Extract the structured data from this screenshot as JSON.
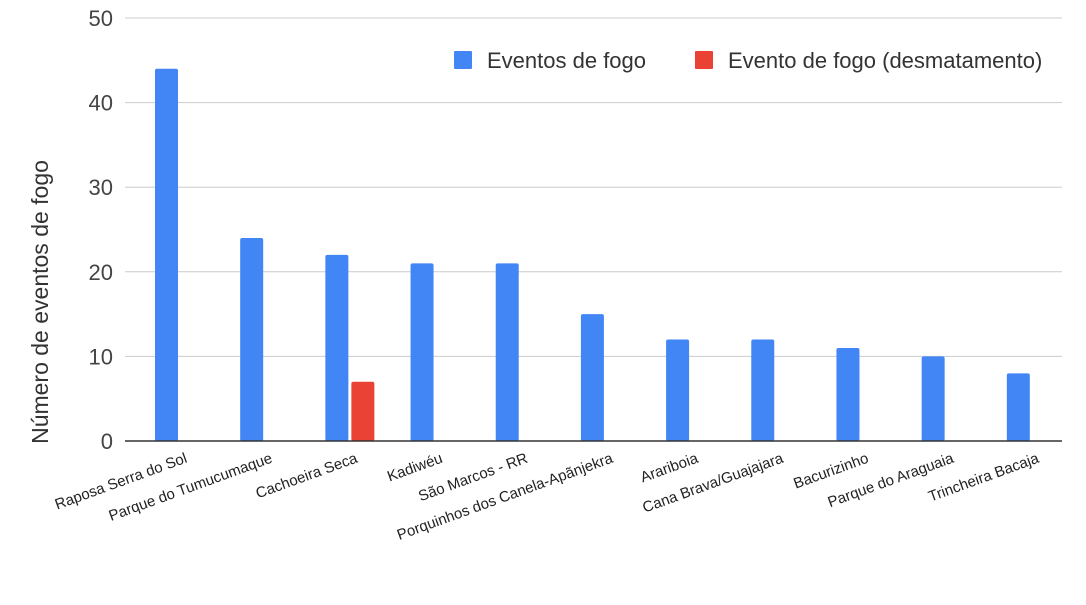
{
  "chart_data": {
    "type": "bar",
    "title": "",
    "xlabel": "",
    "ylabel": "Número de eventos de fogo",
    "ylim": [
      0,
      50
    ],
    "yticks": [
      0,
      10,
      20,
      30,
      40,
      50
    ],
    "grid": true,
    "legend_position": "top-right",
    "categories": [
      "Raposa Serra do Sol",
      "Parque do Tumucumaque",
      "Cachoeira Seca",
      "Kadiwéu",
      "São Marcos - RR",
      "Porquinhos dos Canela-Apãnjekra",
      "Arariboia",
      "Cana Brava/Guajajara",
      "Bacurizinho",
      "Parque do Araguaia",
      "Trincheira Bacaja"
    ],
    "series": [
      {
        "name": "Eventos de fogo",
        "color": "#4285f4",
        "values": [
          44,
          24,
          22,
          21,
          21,
          15,
          12,
          12,
          11,
          10,
          8
        ]
      },
      {
        "name": "Evento de fogo (desmatamento)",
        "color": "#ea4335",
        "values": [
          null,
          null,
          7,
          null,
          null,
          null,
          null,
          null,
          null,
          null,
          null
        ]
      }
    ]
  }
}
